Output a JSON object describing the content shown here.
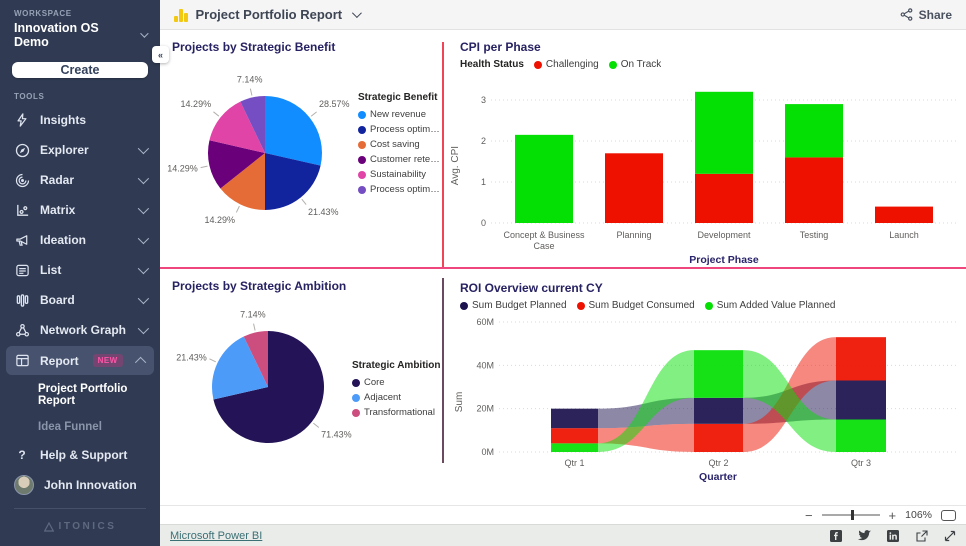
{
  "sidebar": {
    "workspace_label": "WORKSPACE",
    "workspace_name": "Innovation OS Demo",
    "create_label": "Create",
    "tools_label": "TOOLS",
    "items": [
      {
        "label": "Insights"
      },
      {
        "label": "Explorer"
      },
      {
        "label": "Radar"
      },
      {
        "label": "Matrix"
      },
      {
        "label": "Ideation"
      },
      {
        "label": "List"
      },
      {
        "label": "Board"
      },
      {
        "label": "Network Graph"
      },
      {
        "label": "Report",
        "badge": "NEW"
      }
    ],
    "sub_items": [
      {
        "label": "Project Portfolio Report"
      },
      {
        "label": "Idea Funnel"
      }
    ],
    "help_label": "Help & Support",
    "user_name": "John Innovation",
    "brand": "ITONICS"
  },
  "header": {
    "title": "Project Portfolio Report",
    "share_label": "Share"
  },
  "footer": {
    "zoom_level": "106%",
    "powerbi_link": "Microsoft Power BI"
  },
  "chart_data": [
    {
      "type": "pie",
      "title": "Projects by Strategic Benefit",
      "legend_title": "Strategic Benefit",
      "slices": [
        {
          "label": "New revenue",
          "pct": "28.57%",
          "value": 28.57,
          "color": "#118DFF"
        },
        {
          "label": "Process optimiz...",
          "pct": "21.43%",
          "value": 21.43,
          "color": "#12239E"
        },
        {
          "label": "Cost saving",
          "pct": "14.29%",
          "value": 14.29,
          "color": "#E66C37"
        },
        {
          "label": "Customer reten...",
          "pct": "14.29%",
          "value": 14.29,
          "color": "#6B007B"
        },
        {
          "label": "Sustainability",
          "pct": "14.29%",
          "value": 14.29,
          "color": "#E044A7"
        },
        {
          "label": "Process optimiz...",
          "pct": "7.14%",
          "value": 7.14,
          "color": "#744EC2"
        }
      ]
    },
    {
      "type": "bar",
      "title": "CPI per Phase",
      "legend_title": "Health Status",
      "xlabel": "Project Phase",
      "ylabel": "Avg. CPI",
      "ylim": [
        0,
        3.4
      ],
      "yticks": [
        0,
        1,
        2,
        3
      ],
      "categories": [
        "Concept & Business Case",
        "Planning",
        "Development",
        "Testing",
        "Launch"
      ],
      "series": [
        {
          "name": "Challenging",
          "color": "#EE1100",
          "values": [
            0,
            1.7,
            1.2,
            1.6,
            0.4
          ]
        },
        {
          "name": "On Track",
          "color": "#04DF04",
          "values": [
            2.15,
            0,
            2.0,
            1.3,
            0
          ]
        }
      ]
    },
    {
      "type": "pie",
      "title": "Projects by Strategic Ambition",
      "legend_title": "Strategic Ambition",
      "slices": [
        {
          "label": "Core",
          "pct": "71.43%",
          "value": 71.43,
          "color": "#241356"
        },
        {
          "label": "Adjacent",
          "pct": "21.43%",
          "value": 21.43,
          "color": "#4D9BF8"
        },
        {
          "label": "Transformational",
          "pct": "7.14%",
          "value": 7.14,
          "color": "#CC4E7F"
        }
      ]
    },
    {
      "type": "area",
      "title": "ROI Overview current CY",
      "xlabel": "Quarter",
      "ylabel": "Sum",
      "x": [
        "Qtr 1",
        "Qtr 2",
        "Qtr 3"
      ],
      "yticks": [
        0,
        20,
        40,
        60
      ],
      "ytick_labels": [
        "0M",
        "20M",
        "40M",
        "60M"
      ],
      "series": [
        {
          "name": "Sum Budget Planned",
          "color": "#1B124E",
          "values_millions": [
            9,
            12,
            18
          ]
        },
        {
          "name": "Sum Budget Consumed",
          "color": "#EE1100",
          "values_millions": [
            7,
            13,
            20
          ]
        },
        {
          "name": "Sum Added Value Planned",
          "color": "#04DF04",
          "values_millions": [
            4,
            22,
            15
          ]
        }
      ],
      "stack_order_bottom_to_top": [
        [
          2,
          1,
          0
        ],
        [
          1,
          0,
          2
        ],
        [
          2,
          0,
          1
        ]
      ]
    }
  ]
}
